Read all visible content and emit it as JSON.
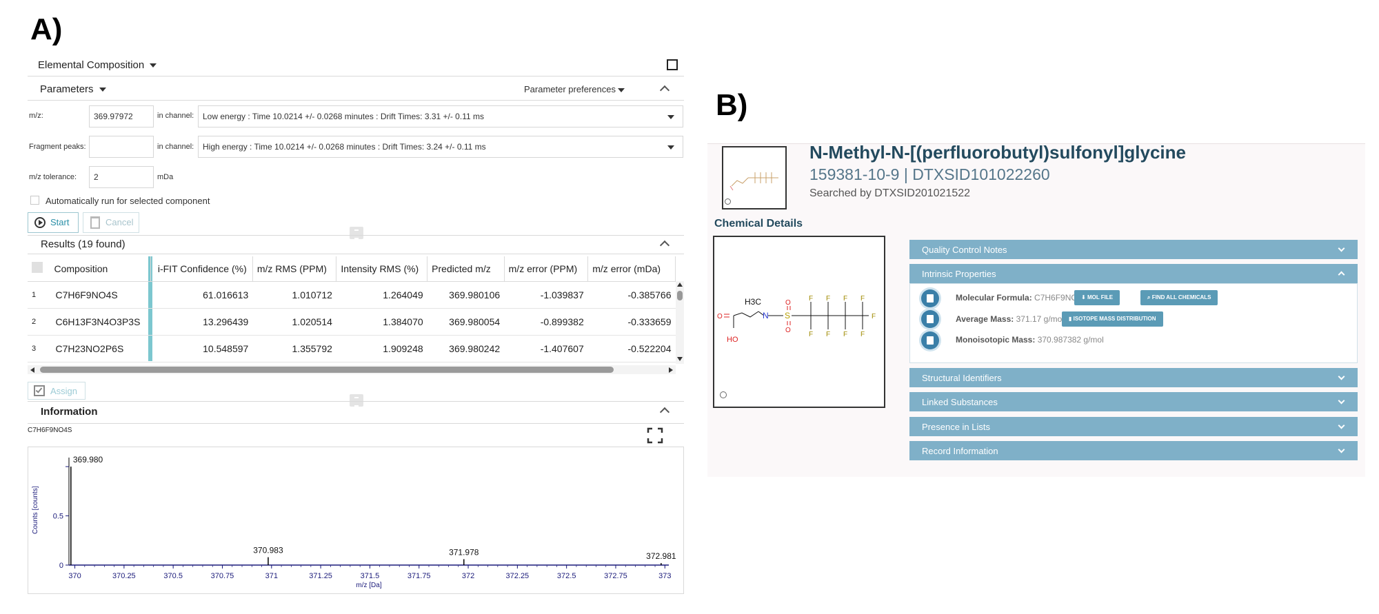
{
  "panel_a": {
    "letter": "A)",
    "header_title": "Elemental Composition",
    "parameters_title": "Parameters",
    "param_prefs": "Parameter preferences",
    "mz_label": "m/z:",
    "mz_value": "369.97972",
    "in_channel_label": "in channel:",
    "channel_low": "Low energy : Time 10.0214 +/- 0.0268 minutes : Drift Times: 3.31 +/- 0.11 ms",
    "fragment_label": "Fragment peaks:",
    "channel_high": "High energy : Time 10.0214 +/- 0.0268 minutes : Drift Times: 3.24 +/- 0.11 ms",
    "tolerance_label": "m/z tolerance:",
    "tolerance_value": "2",
    "tolerance_unit": "mDa",
    "auto_run_label": "Automatically run for selected component",
    "start_label": "Start",
    "cancel_label": "Cancel",
    "results_title": "Results (19 found)",
    "columns": [
      "Composition",
      "i-FIT Confidence (%)",
      "m/z RMS (PPM)",
      "Intensity RMS (%)",
      "Predicted m/z",
      "m/z error (PPM)",
      "m/z error (mDa)"
    ],
    "rows": [
      {
        "idx": "1",
        "composition": "C7H6F9NO4S",
        "ifit": "61.016613",
        "mz_rms": "1.010712",
        "int_rms": "1.264049",
        "pred": "369.980106",
        "err_ppm": "-1.039837",
        "err_mda": "-0.385766"
      },
      {
        "idx": "2",
        "composition": "C6H13F3N4O3P3S",
        "ifit": "13.296439",
        "mz_rms": "1.020514",
        "int_rms": "1.384070",
        "pred": "369.980054",
        "err_ppm": "-0.899382",
        "err_mda": "-0.333659"
      },
      {
        "idx": "3",
        "composition": "C7H23NO2P6S",
        "ifit": "10.548597",
        "mz_rms": "1.355792",
        "int_rms": "1.909248",
        "pred": "369.980242",
        "err_ppm": "-1.407607",
        "err_mda": "-0.522204"
      }
    ],
    "assign_label": "Assign",
    "information_title": "Information",
    "info_formula": "C7H6F9NO4S"
  },
  "chart_data": {
    "type": "bar",
    "title": "",
    "xlabel": "m/z [Da]",
    "ylabel": "Counts [counts]",
    "xlim": [
      369.97,
      373.02
    ],
    "ylim": [
      0,
      1.05
    ],
    "x_ticks": [
      "370",
      "370.25",
      "370.5",
      "370.75",
      "371",
      "371.25",
      "371.5",
      "371.75",
      "372",
      "372.25",
      "372.5",
      "372.75",
      "373"
    ],
    "y_ticks": [
      "0",
      "0.5",
      "1"
    ],
    "peaks": [
      {
        "x": 369.98,
        "y": 1.0,
        "label": "369.980"
      },
      {
        "x": 370.983,
        "y": 0.08,
        "label": "370.983"
      },
      {
        "x": 371.978,
        "y": 0.06,
        "label": "371.978"
      },
      {
        "x": 372.981,
        "y": 0.02,
        "label": "372.981"
      }
    ]
  },
  "panel_b": {
    "letter": "B)",
    "name": "N-Methyl-N-[(perfluorobutyl)sulfonyl]glycine",
    "ids": "159381-10-9 | DTXSID101022260",
    "searched_by": "Searched by DTXSID201021522",
    "chemical_details": "Chemical Details",
    "accordions": {
      "qc": "Quality Control Notes",
      "intrinsic": "Intrinsic Properties",
      "structural": "Structural Identifiers",
      "linked": "Linked Substances",
      "presence": "Presence in Lists",
      "record": "Record Information"
    },
    "mol_formula_label": "Molecular Formula:",
    "mol_formula_value": "C7H6F9NO4S",
    "mol_file_btn": "MOL FILE",
    "find_all_btn": "FIND ALL CHEMICALS",
    "avg_mass_label": "Average Mass:",
    "avg_mass_value": "371.17 g/mol",
    "isotope_btn": "ISOTOPE MASS DISTRIBUTION",
    "mono_mass_label": "Monoisotopic Mass:",
    "mono_mass_value": "370.987382 g/mol",
    "structure_atoms": {
      "h3c": "H3C",
      "n": "N",
      "s": "S",
      "o": "O",
      "f": "F",
      "ho": "HO"
    }
  }
}
